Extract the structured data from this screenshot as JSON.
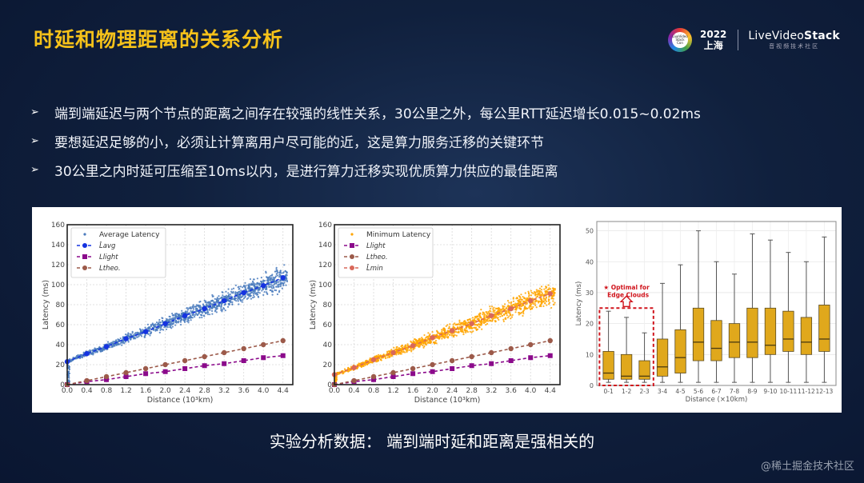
{
  "slide": {
    "title": "时延和物理距离的关系分析",
    "brand": {
      "conference_logo_text": "LiveVideo Stack Con",
      "year": "2022",
      "city": "上海",
      "name_prefix": "LiveVideo",
      "name_suffix": "Stack",
      "subtitle": "音视频技术社区"
    },
    "bullets": [
      {
        "icon": "arrow-bullet-icon",
        "text": "端到端延迟与两个节点的距离之间存在较强的线性关系，30公里之外，每公里RTT延迟增长0.015~0.02ms"
      },
      {
        "icon": "arrow-bullet-icon",
        "text": "要想延迟足够的小，必须让计算离用户尽可能的近，这是算力服务迁移的关键环节"
      },
      {
        "icon": "arrow-bullet-icon",
        "text": "30公里之内时延可压缩至10ms以内，是进行算力迁移实现优质算力供应的最佳距离"
      }
    ],
    "bullet_marker": "➢",
    "caption": "实验分析数据：  端到端时延和距离是强相关的",
    "watermark": "@稀土掘金技术社区",
    "colors": {
      "background": "#10203d",
      "title": "#f6c21a",
      "avg_scatter": "#4a7bbd",
      "avg_fit": "#1533e0",
      "light": "#8b0a8b",
      "theo": "#9c5a4a",
      "min_scatter": "#ffa500",
      "min_fit": "#d9685a",
      "box_fill": "#e0a81c",
      "edge_highlight": "#d0141c"
    }
  },
  "chart_data": [
    {
      "type": "scatter",
      "title": "",
      "xlabel": "Distance (10³km)",
      "ylabel": "Latency (ms)",
      "xlim": [
        0.0,
        4.6
      ],
      "ylim": [
        0,
        160
      ],
      "xticks": [
        "0.0",
        "0.4",
        "0.8",
        "1.2",
        "1.6",
        "2.0",
        "2.4",
        "2.8",
        "3.2",
        "3.6",
        "4.0",
        "4.4"
      ],
      "yticks": [
        "0",
        "20",
        "40",
        "60",
        "80",
        "100",
        "120",
        "140",
        "160"
      ],
      "grid": true,
      "legend_position": "upper left",
      "legend": [
        "Average Latency",
        "L̂avg",
        "Llight",
        "Ltheo."
      ],
      "x": [
        0.0,
        0.4,
        0.8,
        1.2,
        1.6,
        2.0,
        2.4,
        2.8,
        3.2,
        3.6,
        4.0,
        4.4
      ],
      "series": [
        {
          "name": "Average Latency",
          "kind": "scatter",
          "note": "dense scatter following L̂avg, spread widening with distance (approx ±15 ms at 4.0)"
        },
        {
          "name": "L̂avg",
          "kind": "line",
          "values": [
            23,
            31,
            38,
            46,
            53,
            61,
            69,
            76,
            84,
            92,
            99,
            107
          ]
        },
        {
          "name": "Llight",
          "kind": "line",
          "values": [
            0,
            3,
            5,
            8,
            11,
            13,
            16,
            19,
            21,
            24,
            27,
            29
          ]
        },
        {
          "name": "Ltheo.",
          "kind": "line",
          "values": [
            0,
            4,
            8,
            12,
            16,
            20,
            24,
            28,
            32,
            36,
            40,
            44
          ]
        }
      ]
    },
    {
      "type": "scatter",
      "title": "",
      "xlabel": "Distance (10³km)",
      "ylabel": "Latency (ms)",
      "xlim": [
        0.0,
        4.6
      ],
      "ylim": [
        0,
        160
      ],
      "xticks": [
        "0.0",
        "0.4",
        "0.8",
        "1.2",
        "1.6",
        "2.0",
        "2.4",
        "2.8",
        "3.2",
        "3.6",
        "4.0",
        "4.4"
      ],
      "yticks": [
        "0",
        "20",
        "40",
        "60",
        "80",
        "100",
        "120",
        "140",
        "160"
      ],
      "grid": true,
      "legend_position": "upper left",
      "legend": [
        "Minimum Latency",
        "Llight",
        "Ltheo.",
        "L̂min"
      ],
      "x": [
        0.0,
        0.4,
        0.8,
        1.2,
        1.6,
        2.0,
        2.4,
        2.8,
        3.2,
        3.6,
        4.0,
        4.4
      ],
      "series": [
        {
          "name": "Minimum Latency",
          "kind": "scatter",
          "note": "dense orange scatter following L̂min, spread widening with distance"
        },
        {
          "name": "Llight",
          "kind": "line",
          "values": [
            0,
            3,
            5,
            8,
            11,
            13,
            16,
            19,
            21,
            24,
            27,
            29
          ]
        },
        {
          "name": "Ltheo.",
          "kind": "line",
          "values": [
            0,
            4,
            8,
            12,
            16,
            20,
            24,
            28,
            32,
            36,
            40,
            44
          ]
        },
        {
          "name": "L̂min",
          "kind": "line",
          "values": [
            10,
            17,
            25,
            32,
            39,
            47,
            54,
            61,
            69,
            76,
            84,
            91
          ]
        }
      ]
    },
    {
      "type": "box",
      "title": "",
      "xlabel": "Distance (×10km)",
      "ylabel": "Latency (ms)",
      "ylim": [
        0,
        53
      ],
      "yticks": [
        "0",
        "10",
        "20",
        "30",
        "40",
        "50"
      ],
      "grid": true,
      "categories": [
        "0-1",
        "1-2",
        "2-3",
        "3-4",
        "4-5",
        "5-6",
        "6-7",
        "7-8",
        "8-9",
        "9-10",
        "10-11",
        "11-12",
        "12-13"
      ],
      "series": [
        {
          "name": "whisker_low",
          "values": [
            1,
            1,
            1,
            1,
            1,
            1,
            1,
            1,
            1,
            1,
            1,
            1,
            1
          ]
        },
        {
          "name": "q1",
          "values": [
            2,
            2,
            2,
            3,
            4,
            8,
            8,
            9,
            9,
            10,
            11,
            10,
            11
          ]
        },
        {
          "name": "median",
          "values": [
            4,
            3,
            3,
            6,
            9,
            14,
            12,
            14,
            14,
            13,
            15,
            14,
            15
          ]
        },
        {
          "name": "q3",
          "values": [
            11,
            10,
            8,
            15,
            18,
            25,
            21,
            20,
            25,
            25,
            24,
            22,
            26
          ]
        },
        {
          "name": "whisker_high",
          "values": [
            24,
            22,
            17,
            33,
            39,
            50,
            40,
            36,
            49,
            47,
            43,
            40,
            48
          ]
        }
      ],
      "annotation": {
        "text_line1": "★ Optimal for",
        "text_line2": "Edge Clouds",
        "highlighted_categories": [
          "0-1",
          "1-2",
          "2-3"
        ]
      }
    }
  ]
}
